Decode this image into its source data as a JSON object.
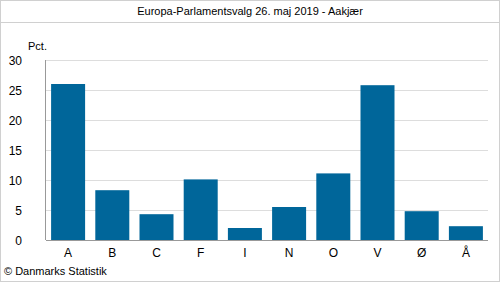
{
  "chart_data": {
    "type": "bar",
    "title": "Europa-Parlamentsvalg 26. maj 2019 - Aakjær",
    "y_label": "Pct.",
    "source": "© Danmarks Statistik",
    "categories": [
      "A",
      "B",
      "C",
      "F",
      "I",
      "N",
      "O",
      "V",
      "Ø",
      "Å"
    ],
    "values": [
      26.0,
      8.3,
      4.3,
      10.1,
      2.0,
      5.5,
      11.1,
      25.8,
      4.8,
      2.3
    ],
    "color": "#00669a",
    "ylim": [
      0,
      30
    ],
    "yticks": [
      0,
      5,
      10,
      15,
      20,
      25,
      30
    ],
    "grid": true
  }
}
